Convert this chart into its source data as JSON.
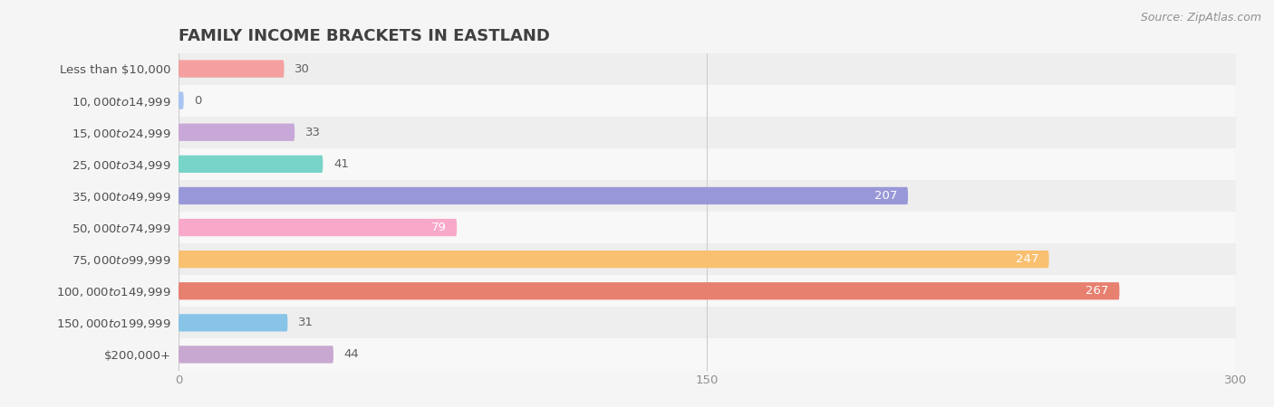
{
  "title": "FAMILY INCOME BRACKETS IN EASTLAND",
  "source": "Source: ZipAtlas.com",
  "categories": [
    "Less than $10,000",
    "$10,000 to $14,999",
    "$15,000 to $24,999",
    "$25,000 to $34,999",
    "$35,000 to $49,999",
    "$50,000 to $74,999",
    "$75,000 to $99,999",
    "$100,000 to $149,999",
    "$150,000 to $199,999",
    "$200,000+"
  ],
  "values": [
    30,
    0,
    33,
    41,
    207,
    79,
    247,
    267,
    31,
    44
  ],
  "bar_colors": [
    "#F4A0A0",
    "#A8C4F0",
    "#C8A8D8",
    "#78D4C8",
    "#9898D8",
    "#F8A8C8",
    "#F8C070",
    "#E88070",
    "#88C4E8",
    "#C8A8D0"
  ],
  "background_color": "#f5f5f5",
  "row_bg_light": "#f8f8f8",
  "row_bg_dark": "#eeeeee",
  "xlim": [
    0,
    300
  ],
  "xticks": [
    0,
    150,
    300
  ],
  "title_color": "#404040",
  "label_color": "#505050",
  "value_color_inside": "#ffffff",
  "value_color_outside": "#606060",
  "title_fontsize": 13,
  "label_fontsize": 9.5,
  "value_fontsize": 9.5,
  "source_fontsize": 9,
  "bar_height": 0.55,
  "inside_threshold": 60
}
